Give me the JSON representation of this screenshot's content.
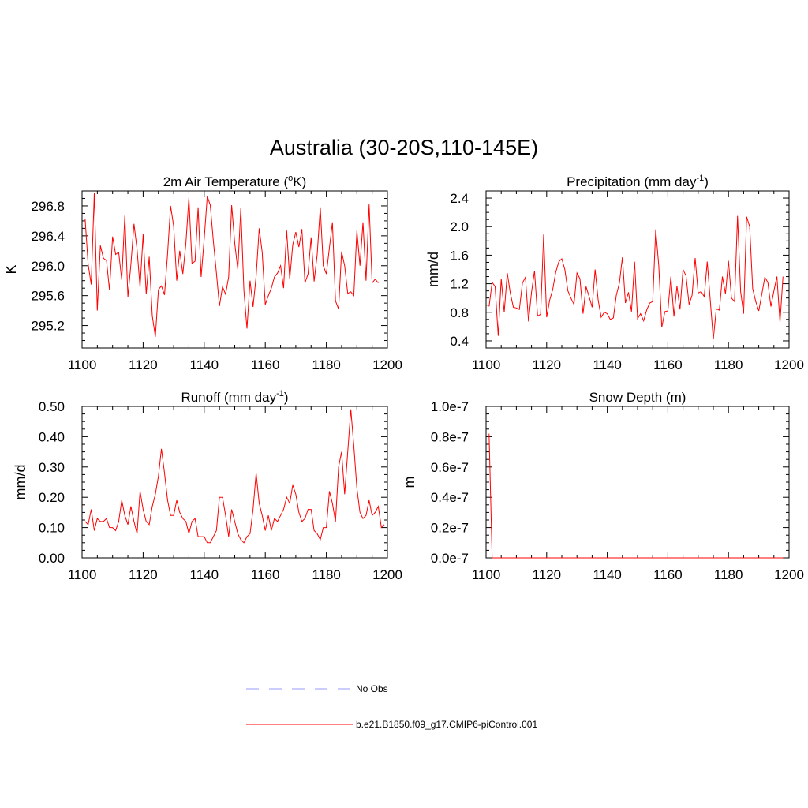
{
  "figure": {
    "title": "Australia (30-20S,110-145E)"
  },
  "colors": {
    "series": "#ff0000",
    "obs": "#9999ff",
    "axis": "#000000"
  },
  "legend": {
    "entries": [
      {
        "label": "No Obs",
        "style": "dashed",
        "color": "#9999ff"
      },
      {
        "label": "b.e21.B1850.f09_g17.CMIP6-piControl.001",
        "style": "solid",
        "color": "#ff0000"
      }
    ]
  },
  "chart_data": [
    {
      "type": "line",
      "title_main": "2m Air Temperature (",
      "title_sup": "o",
      "title_post": "K)",
      "sup_position": "before_unit",
      "ylabel": "K",
      "xlim": [
        1100,
        1200
      ],
      "ylim": [
        294.9,
        297.0
      ],
      "xticks": [
        1100,
        1120,
        1140,
        1160,
        1180,
        1200
      ],
      "xtick_labels": [
        "1100",
        "1120",
        "1140",
        "1160",
        "1180",
        "1200"
      ],
      "yticks": [
        295.2,
        295.6,
        296.0,
        296.4,
        296.8
      ],
      "ytick_labels": [
        "295.2",
        "295.6",
        "296.0",
        "296.4",
        "296.8"
      ],
      "x_start": 1101,
      "series": [
        {
          "values": [
            296.62,
            296.02,
            295.75,
            296.97,
            295.4,
            296.27,
            296.1,
            296.07,
            295.67,
            296.39,
            296.15,
            296.18,
            295.81,
            296.67,
            295.58,
            296.02,
            296.56,
            296.22,
            295.71,
            296.42,
            295.62,
            296.12,
            295.33,
            295.05,
            295.68,
            295.73,
            295.61,
            296.16,
            296.8,
            296.53,
            295.8,
            296.2,
            295.89,
            296.3,
            296.91,
            296.03,
            296.06,
            296.78,
            295.85,
            296.36,
            296.93,
            296.81,
            296.33,
            295.9,
            295.46,
            295.72,
            295.62,
            295.85,
            296.81,
            296.3,
            295.95,
            296.77,
            295.67,
            295.16,
            295.8,
            295.45,
            295.86,
            296.5,
            296.18,
            295.48,
            295.6,
            295.7,
            295.85,
            295.9,
            296.0,
            295.7,
            296.47,
            295.82,
            296.28,
            296.45,
            296.25,
            296.49,
            295.77,
            295.89,
            296.38,
            295.79,
            296.15,
            296.78,
            296.0,
            295.89,
            296.24,
            296.58,
            295.53,
            295.42,
            296.19,
            296.0,
            295.63,
            295.65,
            295.6,
            296.47,
            296.0,
            296.58,
            295.8,
            296.82,
            295.77,
            295.82,
            295.77
          ]
        }
      ]
    },
    {
      "type": "line",
      "title_main": "Precipitation (mm day",
      "title_sup": "-1",
      "title_post": ")",
      "ylabel": "mm/d",
      "xlim": [
        1100,
        1200
      ],
      "ylim": [
        0.3,
        2.5
      ],
      "xticks": [
        1100,
        1120,
        1140,
        1160,
        1180,
        1200
      ],
      "xtick_labels": [
        "1100",
        "1120",
        "1140",
        "1160",
        "1180",
        "1200"
      ],
      "yticks": [
        0.4,
        0.8,
        1.2,
        1.6,
        2.0,
        2.4
      ],
      "ytick_labels": [
        "0.4",
        "0.8",
        "1.2",
        "1.6",
        "2.0",
        "2.4"
      ],
      "x_start": 1101,
      "series": [
        {
          "values": [
            0.88,
            1.22,
            1.16,
            0.47,
            1.27,
            0.8,
            1.35,
            1.07,
            0.87,
            0.86,
            0.84,
            1.21,
            1.29,
            0.67,
            1.08,
            1.38,
            0.75,
            0.77,
            1.89,
            0.73,
            0.97,
            1.12,
            1.36,
            1.51,
            1.55,
            1.4,
            1.1,
            1.0,
            0.91,
            1.35,
            1.27,
            0.78,
            1.16,
            1.02,
            0.87,
            1.4,
            0.97,
            0.73,
            0.8,
            0.78,
            0.7,
            0.72,
            1.04,
            1.21,
            1.57,
            0.93,
            1.08,
            0.81,
            1.51,
            0.71,
            0.78,
            0.68,
            0.83,
            0.93,
            0.95,
            1.96,
            1.45,
            0.59,
            0.81,
            0.82,
            1.3,
            0.74,
            1.17,
            0.84,
            1.4,
            1.31,
            0.91,
            1.04,
            1.56,
            1.07,
            1.09,
            1.02,
            1.51,
            0.96,
            0.42,
            0.85,
            0.83,
            1.3,
            1.06,
            1.52,
            1.0,
            0.95,
            2.15,
            1.09,
            0.78,
            2.14,
            2.0,
            1.13,
            0.95,
            0.82,
            1.05,
            1.29,
            1.22,
            0.88,
            1.1,
            1.3,
            0.66,
            1.3
          ]
        }
      ]
    },
    {
      "type": "line",
      "title_main": "Runoff (mm day",
      "title_sup": "-1",
      "title_post": ")",
      "ylabel": "mm/d",
      "xlim": [
        1100,
        1200
      ],
      "ylim": [
        0.0,
        0.5
      ],
      "xticks": [
        1100,
        1120,
        1140,
        1160,
        1180,
        1200
      ],
      "xtick_labels": [
        "1100",
        "1120",
        "1140",
        "1160",
        "1180",
        "1200"
      ],
      "yticks": [
        0.0,
        0.1,
        0.2,
        0.3,
        0.4,
        0.5
      ],
      "ytick_labels": [
        "0.00",
        "0.10",
        "0.20",
        "0.30",
        "0.40",
        "0.50"
      ],
      "x_start": 1101,
      "series": [
        {
          "values": [
            0.12,
            0.11,
            0.16,
            0.09,
            0.13,
            0.12,
            0.12,
            0.13,
            0.1,
            0.1,
            0.09,
            0.12,
            0.19,
            0.14,
            0.11,
            0.17,
            0.12,
            0.08,
            0.22,
            0.16,
            0.12,
            0.11,
            0.17,
            0.21,
            0.27,
            0.36,
            0.28,
            0.19,
            0.14,
            0.14,
            0.19,
            0.15,
            0.13,
            0.12,
            0.08,
            0.12,
            0.13,
            0.07,
            0.07,
            0.07,
            0.05,
            0.05,
            0.07,
            0.09,
            0.2,
            0.2,
            0.14,
            0.07,
            0.16,
            0.12,
            0.08,
            0.06,
            0.05,
            0.07,
            0.08,
            0.16,
            0.28,
            0.18,
            0.14,
            0.09,
            0.14,
            0.09,
            0.13,
            0.12,
            0.14,
            0.16,
            0.2,
            0.18,
            0.24,
            0.21,
            0.15,
            0.12,
            0.13,
            0.16,
            0.16,
            0.09,
            0.08,
            0.06,
            0.1,
            0.1,
            0.22,
            0.18,
            0.12,
            0.3,
            0.35,
            0.21,
            0.35,
            0.49,
            0.37,
            0.23,
            0.15,
            0.13,
            0.14,
            0.19,
            0.14,
            0.15,
            0.17,
            0.1,
            0.11
          ]
        }
      ]
    },
    {
      "type": "line",
      "title_main": "Snow Depth (m)",
      "title_sup": "",
      "title_post": "",
      "ylabel": "m",
      "xlim": [
        1100,
        1200
      ],
      "ylim": [
        0.0,
        1e-07
      ],
      "xticks": [
        1100,
        1120,
        1140,
        1160,
        1180,
        1200
      ],
      "xtick_labels": [
        "1100",
        "1120",
        "1140",
        "1160",
        "1180",
        "1200"
      ],
      "yticks": [
        0.0,
        2e-08,
        4e-08,
        6e-08,
        8e-08,
        1e-07
      ],
      "ytick_labels": [
        "0.0e-7",
        "0.2e-7",
        "0.4e-7",
        "0.6e-7",
        "0.8e-7",
        "1.0e-7"
      ],
      "x_start": 1101,
      "series": [
        {
          "values": [
            8.2e-08,
            0,
            0,
            0,
            0,
            0,
            0,
            0,
            0,
            0,
            0,
            0,
            0,
            0,
            0,
            0,
            0,
            0,
            0,
            0,
            0,
            0,
            0,
            0,
            0,
            0,
            0,
            0,
            0,
            0,
            0,
            0,
            0,
            0,
            0,
            0,
            0,
            0,
            0,
            0,
            0,
            0,
            0,
            0,
            0,
            0,
            0,
            0,
            0,
            0,
            0,
            0,
            0,
            0,
            0,
            0,
            0,
            0,
            0,
            0,
            0,
            0,
            0,
            0,
            0,
            0,
            0,
            0,
            0,
            0,
            0,
            0,
            0,
            0,
            0,
            0,
            0,
            0,
            0,
            0,
            0,
            0,
            0,
            0,
            0,
            0,
            0,
            0,
            0,
            0,
            0,
            0,
            0,
            0,
            0,
            0,
            0,
            0
          ]
        }
      ]
    }
  ]
}
